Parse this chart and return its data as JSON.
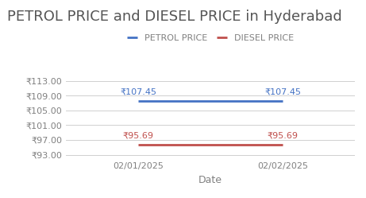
{
  "title": "PETROL PRICE and DIESEL PRICE in Hyderabad",
  "xlabel": "Date",
  "x_labels": [
    "02/01/2025",
    "02/02/2025"
  ],
  "petrol_values": [
    107.45,
    107.45
  ],
  "diesel_values": [
    95.69,
    95.69
  ],
  "petrol_color": "#4472C4",
  "diesel_color": "#C0504D",
  "ylim_min": 92.0,
  "ylim_max": 114.5,
  "yticks": [
    93.0,
    97.0,
    101.0,
    105.0,
    109.0,
    113.0
  ],
  "title_fontsize": 13,
  "axis_label_fontsize": 9,
  "tick_fontsize": 8,
  "annotation_fontsize": 8,
  "legend_fontsize": 8,
  "line_width": 2.0,
  "rupee_symbol": "₹"
}
